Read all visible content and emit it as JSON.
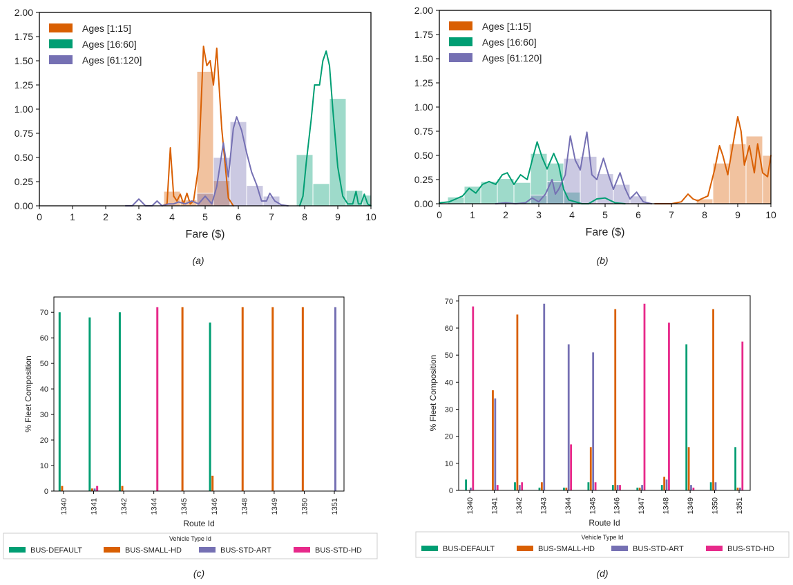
{
  "colors": {
    "orange": "#d95f02",
    "green": "#009e73",
    "purple": "#7570b3",
    "pink": "#e7298a",
    "axis": "#000000"
  },
  "panels": {
    "a": {
      "caption": "(a)"
    },
    "b": {
      "caption": "(b)"
    },
    "c": {
      "caption": "(c)"
    },
    "d": {
      "caption": "(d)"
    }
  },
  "chart_data": [
    {
      "id": "a",
      "type": "histogram+kde",
      "xlabel": "Fare ($)",
      "ylabel": "",
      "xlim": [
        0,
        10
      ],
      "ylim": [
        0,
        2.0
      ],
      "xticks": [
        "0",
        "1",
        "2",
        "3",
        "4",
        "5",
        "6",
        "7",
        "8",
        "9",
        "10"
      ],
      "yticks": [
        "0.00",
        "0.25",
        "0.50",
        "0.75",
        "1.00",
        "1.25",
        "1.50",
        "1.75",
        "2.00"
      ],
      "legend": [
        "Ages [1:15]",
        "Ages [16:60]",
        "Ages [61:120]"
      ],
      "legend_position": "top-left",
      "series": [
        {
          "name": "Ages [1:15]",
          "color": "orange",
          "bins": [
            [
              3.75,
              4.25,
              0.15
            ],
            [
              4.25,
              4.75,
              0.06
            ],
            [
              4.75,
              5.25,
              1.39
            ],
            [
              5.25,
              5.75,
              0.26
            ]
          ],
          "kde": [
            [
              3.7,
              0
            ],
            [
              3.85,
              0.02
            ],
            [
              3.95,
              0.6
            ],
            [
              4.05,
              0.1
            ],
            [
              4.15,
              0.05
            ],
            [
              4.25,
              0.12
            ],
            [
              4.35,
              0.02
            ],
            [
              4.45,
              0.13
            ],
            [
              4.55,
              0.02
            ],
            [
              4.65,
              0.05
            ],
            [
              4.8,
              0.4
            ],
            [
              4.95,
              1.65
            ],
            [
              5.05,
              1.45
            ],
            [
              5.15,
              1.5
            ],
            [
              5.25,
              1.25
            ],
            [
              5.35,
              1.63
            ],
            [
              5.5,
              0.8
            ],
            [
              5.7,
              0.08
            ],
            [
              5.85,
              0
            ]
          ]
        },
        {
          "name": "Ages [16:60]",
          "color": "green",
          "bins": [
            [
              7.75,
              8.25,
              0.53
            ],
            [
              8.25,
              8.75,
              0.23
            ],
            [
              8.75,
              9.25,
              1.11
            ],
            [
              9.25,
              9.75,
              0.16
            ],
            [
              9.75,
              10,
              0.11
            ]
          ],
          "kde": [
            [
              7.85,
              0
            ],
            [
              7.95,
              0.1
            ],
            [
              8.05,
              0.45
            ],
            [
              8.2,
              0.9
            ],
            [
              8.3,
              1.25
            ],
            [
              8.45,
              1.25
            ],
            [
              8.55,
              1.5
            ],
            [
              8.65,
              1.6
            ],
            [
              8.75,
              1.45
            ],
            [
              8.85,
              1.0
            ],
            [
              9.0,
              0.4
            ],
            [
              9.15,
              0.1
            ],
            [
              9.3,
              0.02
            ],
            [
              9.45,
              0.02
            ],
            [
              9.55,
              0.15
            ],
            [
              9.62,
              0.02
            ],
            [
              9.7,
              0.02
            ],
            [
              9.8,
              0.12
            ],
            [
              9.9,
              0.02
            ],
            [
              10.0,
              0.0
            ]
          ]
        },
        {
          "name": "Ages [61:120]",
          "color": "purple",
          "bins": [
            [
              4.75,
              5.25,
              0.13
            ],
            [
              5.25,
              5.75,
              0.5
            ],
            [
              5.75,
              6.25,
              0.87
            ],
            [
              6.25,
              6.75,
              0.21
            ],
            [
              6.75,
              7.25,
              0.1
            ]
          ],
          "kde": [
            [
              2.6,
              0
            ],
            [
              2.8,
              0
            ],
            [
              3.0,
              0.07
            ],
            [
              3.2,
              0
            ],
            [
              3.4,
              0
            ],
            [
              3.55,
              0.05
            ],
            [
              3.7,
              0
            ],
            [
              3.9,
              0.02
            ],
            [
              4.05,
              0.02
            ],
            [
              4.2,
              0.04
            ],
            [
              4.4,
              0.02
            ],
            [
              4.6,
              0.05
            ],
            [
              4.8,
              0.02
            ],
            [
              5.0,
              0.1
            ],
            [
              5.2,
              0.02
            ],
            [
              5.35,
              0.2
            ],
            [
              5.55,
              0.65
            ],
            [
              5.7,
              0.3
            ],
            [
              5.85,
              0.8
            ],
            [
              5.95,
              0.92
            ],
            [
              6.1,
              0.78
            ],
            [
              6.25,
              0.55
            ],
            [
              6.4,
              0.35
            ],
            [
              6.55,
              0.22
            ],
            [
              6.7,
              0.05
            ],
            [
              6.85,
              0.05
            ],
            [
              6.95,
              0.13
            ],
            [
              7.1,
              0.05
            ],
            [
              7.3,
              0.01
            ],
            [
              7.5,
              0
            ]
          ]
        }
      ]
    },
    {
      "id": "b",
      "type": "histogram+kde",
      "xlabel": "Fare ($)",
      "ylabel": "",
      "xlim": [
        0,
        10
      ],
      "ylim": [
        0,
        2.0
      ],
      "xticks": [
        "0",
        "1",
        "2",
        "3",
        "4",
        "5",
        "6",
        "7",
        "8",
        "9",
        "10"
      ],
      "yticks": [
        "0.00",
        "0.25",
        "0.50",
        "0.75",
        "1.00",
        "1.25",
        "1.50",
        "1.75",
        "2.00"
      ],
      "legend": [
        "Ages [1:15]",
        "Ages [16:60]",
        "Ages [61:120]"
      ],
      "legend_position": "top-left",
      "series": [
        {
          "name": "Ages [1:15]",
          "color": "orange",
          "bins": [
            [
              7.75,
              8.25,
              0.05
            ],
            [
              8.25,
              8.75,
              0.42
            ],
            [
              8.75,
              9.25,
              0.62
            ],
            [
              9.25,
              9.75,
              0.7
            ],
            [
              9.75,
              10,
              0.5
            ]
          ],
          "kde": [
            [
              6.5,
              0
            ],
            [
              7.0,
              0
            ],
            [
              7.3,
              0.02
            ],
            [
              7.5,
              0.1
            ],
            [
              7.65,
              0.05
            ],
            [
              7.8,
              0.03
            ],
            [
              7.9,
              0.05
            ],
            [
              8.1,
              0.08
            ],
            [
              8.3,
              0.35
            ],
            [
              8.45,
              0.6
            ],
            [
              8.55,
              0.5
            ],
            [
              8.7,
              0.3
            ],
            [
              8.85,
              0.6
            ],
            [
              9.0,
              0.9
            ],
            [
              9.1,
              0.75
            ],
            [
              9.2,
              0.4
            ],
            [
              9.35,
              0.6
            ],
            [
              9.5,
              0.32
            ],
            [
              9.6,
              0.62
            ],
            [
              9.75,
              0.32
            ],
            [
              9.9,
              0.28
            ],
            [
              10,
              0.5
            ]
          ]
        },
        {
          "name": "Ages [16:60]",
          "color": "green",
          "bins": [
            [
              0.25,
              0.75,
              0.07
            ],
            [
              0.75,
              1.25,
              0.18
            ],
            [
              1.25,
              1.75,
              0.23
            ],
            [
              1.75,
              2.25,
              0.26
            ],
            [
              2.25,
              2.75,
              0.22
            ],
            [
              2.75,
              3.25,
              0.52
            ],
            [
              3.25,
              3.75,
              0.42
            ],
            [
              3.75,
              4.25,
              0.12
            ]
          ],
          "kde": [
            [
              0.0,
              0.01
            ],
            [
              0.3,
              0.02
            ],
            [
              0.5,
              0.05
            ],
            [
              0.7,
              0.08
            ],
            [
              0.9,
              0.16
            ],
            [
              1.1,
              0.11
            ],
            [
              1.3,
              0.2
            ],
            [
              1.5,
              0.23
            ],
            [
              1.7,
              0.2
            ],
            [
              1.9,
              0.3
            ],
            [
              2.05,
              0.32
            ],
            [
              2.25,
              0.2
            ],
            [
              2.45,
              0.3
            ],
            [
              2.65,
              0.25
            ],
            [
              2.8,
              0.45
            ],
            [
              2.95,
              0.64
            ],
            [
              3.1,
              0.48
            ],
            [
              3.25,
              0.36
            ],
            [
              3.45,
              0.52
            ],
            [
              3.6,
              0.4
            ],
            [
              3.75,
              0.15
            ],
            [
              3.9,
              0.04
            ],
            [
              4.1,
              0.02
            ],
            [
              4.3,
              0
            ],
            [
              4.5,
              0
            ],
            [
              4.75,
              0.05
            ],
            [
              5.0,
              0.06
            ],
            [
              5.3,
              0.01
            ],
            [
              5.6,
              0
            ]
          ]
        },
        {
          "name": "Ages [61:120]",
          "color": "purple",
          "bins": [
            [
              2.75,
              3.25,
              0.09
            ],
            [
              3.25,
              3.75,
              0.23
            ],
            [
              3.75,
              4.25,
              0.47
            ],
            [
              4.25,
              4.75,
              0.49
            ],
            [
              4.75,
              5.25,
              0.31
            ],
            [
              5.25,
              5.75,
              0.2
            ],
            [
              5.75,
              6.25,
              0.08
            ]
          ],
          "kde": [
            [
              1.7,
              0
            ],
            [
              2.0,
              0.01
            ],
            [
              2.3,
              0.0
            ],
            [
              2.6,
              0.01
            ],
            [
              2.8,
              0.06
            ],
            [
              3.0,
              0.02
            ],
            [
              3.2,
              0.1
            ],
            [
              3.4,
              0.25
            ],
            [
              3.5,
              0.1
            ],
            [
              3.6,
              0.15
            ],
            [
              3.8,
              0.3
            ],
            [
              3.95,
              0.7
            ],
            [
              4.1,
              0.45
            ],
            [
              4.25,
              0.35
            ],
            [
              4.45,
              0.74
            ],
            [
              4.6,
              0.3
            ],
            [
              4.75,
              0.25
            ],
            [
              4.95,
              0.47
            ],
            [
              5.1,
              0.3
            ],
            [
              5.25,
              0.15
            ],
            [
              5.45,
              0.32
            ],
            [
              5.6,
              0.16
            ],
            [
              5.75,
              0.05
            ],
            [
              5.95,
              0.12
            ],
            [
              6.15,
              0.02
            ],
            [
              6.4,
              0
            ]
          ]
        }
      ]
    },
    {
      "id": "c",
      "type": "bar",
      "xlabel": "Route Id",
      "ylabel": "% Fleet Composition",
      "ylim": [
        0,
        76
      ],
      "yticks": [
        "0",
        "10",
        "20",
        "30",
        "40",
        "50",
        "60",
        "70"
      ],
      "categories": [
        "1340",
        "1341",
        "1342",
        "1344",
        "1345",
        "1346",
        "1348",
        "1349",
        "1350",
        "1351"
      ],
      "legend_title": "Vehicle Type Id",
      "legend": [
        "BUS-DEFAULT",
        "BUS-SMALL-HD",
        "BUS-STD-ART",
        "BUS-STD-HD"
      ],
      "legend_position": "bottom",
      "series": [
        {
          "name": "BUS-DEFAULT",
          "color": "green",
          "values": [
            70,
            68,
            70,
            0,
            0,
            66,
            0,
            0,
            0,
            0
          ]
        },
        {
          "name": "BUS-SMALL-HD",
          "color": "orange",
          "values": [
            2,
            1,
            2,
            0,
            72,
            6,
            72,
            72,
            72,
            0
          ]
        },
        {
          "name": "BUS-STD-ART",
          "color": "purple",
          "values": [
            0,
            1,
            0,
            0,
            0,
            0,
            0,
            0,
            0,
            72
          ]
        },
        {
          "name": "BUS-STD-HD",
          "color": "pink",
          "values": [
            0,
            2,
            0,
            72,
            0,
            0,
            0,
            0,
            0,
            0
          ]
        }
      ]
    },
    {
      "id": "d",
      "type": "bar",
      "xlabel": "Route Id",
      "ylabel": "% Fleet Composition",
      "ylim": [
        0,
        72
      ],
      "yticks": [
        "0",
        "10",
        "20",
        "30",
        "40",
        "50",
        "60",
        "70"
      ],
      "categories": [
        "1340",
        "1341",
        "1342",
        "1343",
        "1344",
        "1345",
        "1346",
        "1347",
        "1348",
        "1349",
        "1350",
        "1351"
      ],
      "legend_title": "Vehicle Type Id",
      "legend": [
        "BUS-DEFAULT",
        "BUS-SMALL-HD",
        "BUS-STD-ART",
        "BUS-STD-HD"
      ],
      "legend_position": "bottom",
      "series": [
        {
          "name": "BUS-DEFAULT",
          "color": "green",
          "values": [
            4,
            0,
            3,
            1,
            1,
            3,
            2,
            1,
            2,
            54,
            3,
            16
          ]
        },
        {
          "name": "BUS-SMALL-HD",
          "color": "orange",
          "values": [
            0,
            37,
            65,
            3,
            1,
            16,
            67,
            1,
            5,
            16,
            67,
            1
          ]
        },
        {
          "name": "BUS-STD-ART",
          "color": "purple",
          "values": [
            1,
            34,
            2,
            69,
            54,
            51,
            2,
            2,
            4,
            2,
            3,
            1
          ]
        },
        {
          "name": "BUS-STD-HD",
          "color": "pink",
          "values": [
            68,
            2,
            3,
            0,
            17,
            3,
            2,
            69,
            62,
            1,
            0,
            55
          ]
        }
      ]
    }
  ]
}
